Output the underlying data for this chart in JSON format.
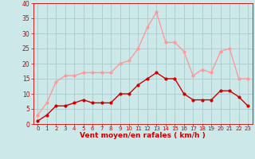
{
  "hours": [
    0,
    1,
    2,
    3,
    4,
    5,
    6,
    7,
    8,
    9,
    10,
    11,
    12,
    13,
    14,
    15,
    16,
    17,
    18,
    19,
    20,
    21,
    22,
    23
  ],
  "wind_avg": [
    1,
    3,
    6,
    6,
    7,
    8,
    7,
    7,
    7,
    10,
    10,
    13,
    15,
    17,
    15,
    15,
    10,
    8,
    8,
    8,
    11,
    11,
    9,
    6
  ],
  "wind_gust": [
    3,
    7,
    14,
    16,
    16,
    17,
    17,
    17,
    17,
    20,
    21,
    25,
    32,
    37,
    27,
    27,
    24,
    16,
    18,
    17,
    24,
    25,
    15,
    15
  ],
  "avg_color": "#cc0000",
  "gust_color": "#ff9999",
  "bg_color": "#cce8e8",
  "grid_color": "#aacccc",
  "xlabel": "Vent moyen/en rafales ( km/h )",
  "xlabel_color": "#cc0000",
  "tick_color": "#cc0000",
  "ylim": [
    0,
    40
  ],
  "yticks": [
    0,
    5,
    10,
    15,
    20,
    25,
    30,
    35,
    40
  ]
}
